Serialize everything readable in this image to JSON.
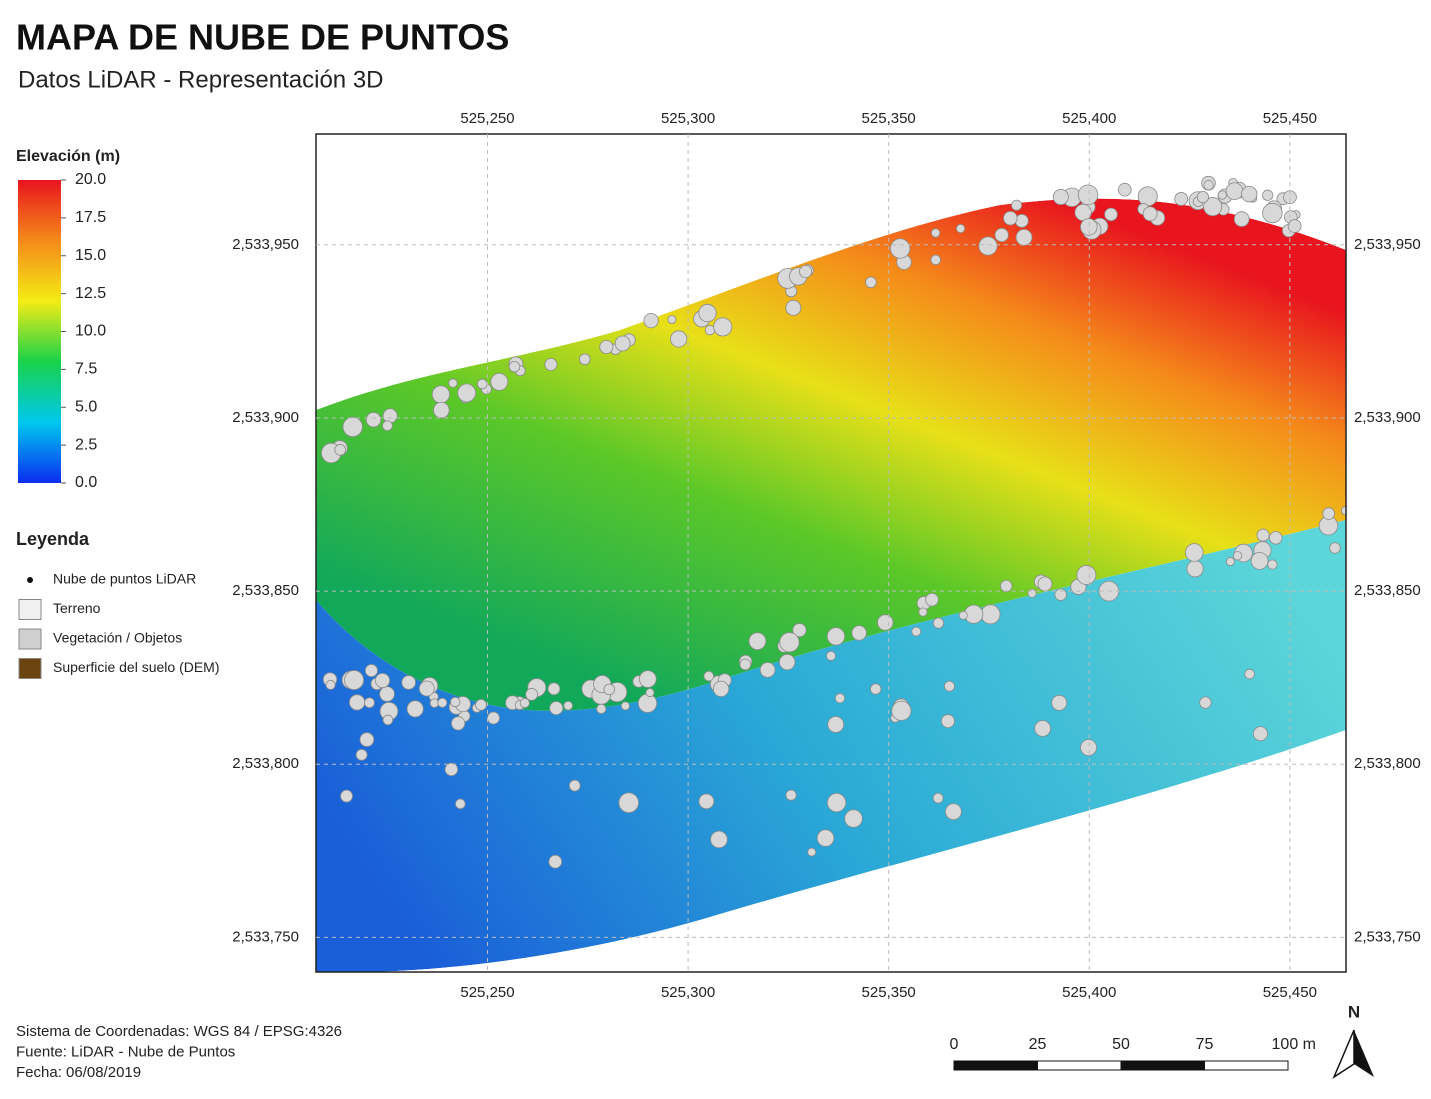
{
  "header": {
    "title": "MAPA DE NUBE DE PUNTOS",
    "subtitle": "Datos LiDAR - Representación 3D"
  },
  "map": {
    "xlim": [
      525207.25,
      525464
    ],
    "ylim": [
      2533740,
      2533982
    ],
    "xticks": [
      {
        "value": 525250,
        "label": "525,250"
      },
      {
        "value": 525300,
        "label": "525,300"
      },
      {
        "value": 525350,
        "label": "525,350"
      },
      {
        "value": 525400,
        "label": "525,400"
      },
      {
        "value": 525450,
        "label": "525,450"
      }
    ],
    "yticks": [
      {
        "value": 2533750,
        "label": "2,533,750"
      },
      {
        "value": 2533800,
        "label": "2,533,800"
      },
      {
        "value": 2533850,
        "label": "2,533,850"
      },
      {
        "value": 2533900,
        "label": "2,533,900"
      },
      {
        "value": 2533950,
        "label": "2,533,950"
      }
    ],
    "grid": true
  },
  "colorbar": {
    "title": "Elevación (m)",
    "lim": [
      0,
      20
    ],
    "ticks": [
      {
        "value": 0,
        "label": "0.0"
      },
      {
        "value": 2.5,
        "label": "2.5"
      },
      {
        "value": 5,
        "label": "5.0"
      },
      {
        "value": 7.5,
        "label": "7.5"
      },
      {
        "value": 10,
        "label": "10.0"
      },
      {
        "value": 12.5,
        "label": "12.5"
      },
      {
        "value": 15,
        "label": "15.0"
      },
      {
        "value": 17.5,
        "label": "17.5"
      },
      {
        "value": 20,
        "label": "20.0"
      }
    ],
    "colors": [
      "#0a2cf0",
      "#00c8ee",
      "#19d24a",
      "#f3ec14",
      "#f58a1a",
      "#e8141e"
    ]
  },
  "legend": {
    "title": "Leyenda",
    "items": [
      {
        "label": "Nube de puntos LiDAR",
        "color": "#111111"
      },
      {
        "label": "Terreno",
        "color": "#f0f0f0"
      },
      {
        "label": "Vegetación / Objetos",
        "color": "#cfcfcf"
      },
      {
        "label": "Superficie del suelo (DEM)",
        "color": "#6b4410"
      }
    ]
  },
  "scale_bar": {
    "ticks": [
      0,
      25,
      50,
      75,
      {
        "value": 100,
        "label": "100 m"
      }
    ]
  },
  "north_label": "N",
  "footer": [
    "Sistema de Coordenadas: WGS 84 / EPSG:4326",
    "Fuente: LiDAR - Nube de Puntos",
    "Fecha: 06/08/2019"
  ]
}
